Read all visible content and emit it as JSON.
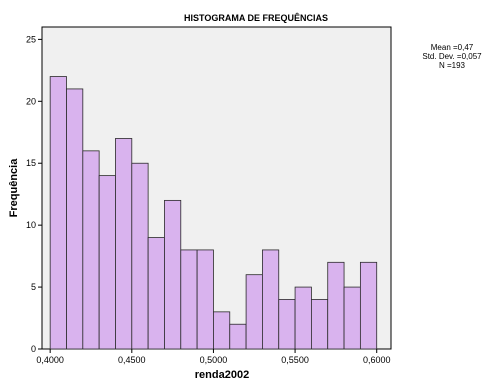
{
  "chart_data": {
    "type": "histogram",
    "title": "HISTOGRAMA DE FREQUÊNCIAS",
    "xlabel": "renda2002",
    "ylabel": "Frequência",
    "xlim": [
      0.395,
      0.60875
    ],
    "ylim": [
      0,
      26
    ],
    "xticks": [
      0.4,
      0.45,
      0.5,
      0.55,
      0.6
    ],
    "xtick_labels": [
      "0,4000",
      "0,4500",
      "0,5000",
      "0,5500",
      "0,6000"
    ],
    "yticks": [
      0,
      5,
      10,
      15,
      20,
      25
    ],
    "ytick_labels": [
      "0",
      "5",
      "10",
      "15",
      "20",
      "25"
    ],
    "bin_start": 0.4,
    "bin_width": 0.01,
    "values": [
      22,
      21,
      16,
      14,
      17,
      15,
      9,
      12,
      8,
      8,
      3,
      2,
      6,
      8,
      4,
      5,
      4,
      7,
      5,
      7
    ],
    "bar_color": "#d9b3ee",
    "bar_edge": "#2a2a2a",
    "plot_background": "#f0f0f0",
    "stats": [
      "Mean =0,47",
      "Std. Dev. =0,057",
      "N =193"
    ]
  }
}
